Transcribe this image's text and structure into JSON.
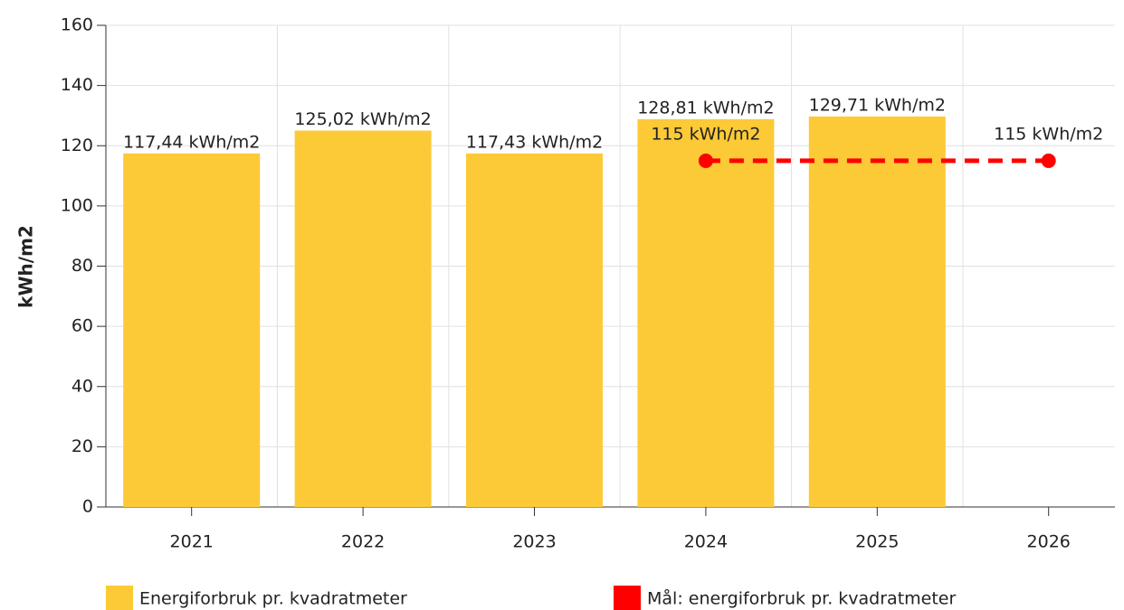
{
  "chart_data": {
    "type": "bar",
    "categories": [
      "2021",
      "2022",
      "2023",
      "2024",
      "2025",
      "2026"
    ],
    "y_label": "kWh/m2",
    "ylim": [
      0,
      160
    ],
    "yticks": [
      0,
      20,
      40,
      60,
      80,
      100,
      120,
      140,
      160
    ],
    "grid": true,
    "series": [
      {
        "name": "Energiforbruk pr. kvadratmeter",
        "type": "bar",
        "color": "#fcca36",
        "values": [
          117.44,
          125.02,
          117.43,
          128.81,
          129.71,
          null
        ],
        "value_labels": [
          "117,44 kWh/m2",
          "125,02 kWh/m2",
          "117,43 kWh/m2",
          "128,81 kWh/m2",
          "129,71 kWh/m2",
          null
        ]
      },
      {
        "name": "Mål: energiforbruk pr. kvadratmeter",
        "type": "line",
        "color": "#ff0000",
        "dashed": true,
        "x": [
          "2024",
          "2026"
        ],
        "values": [
          115,
          115
        ],
        "value_labels": [
          "115 kWh/m2",
          "115 kWh/m2"
        ]
      }
    ],
    "legend": "bottom"
  }
}
